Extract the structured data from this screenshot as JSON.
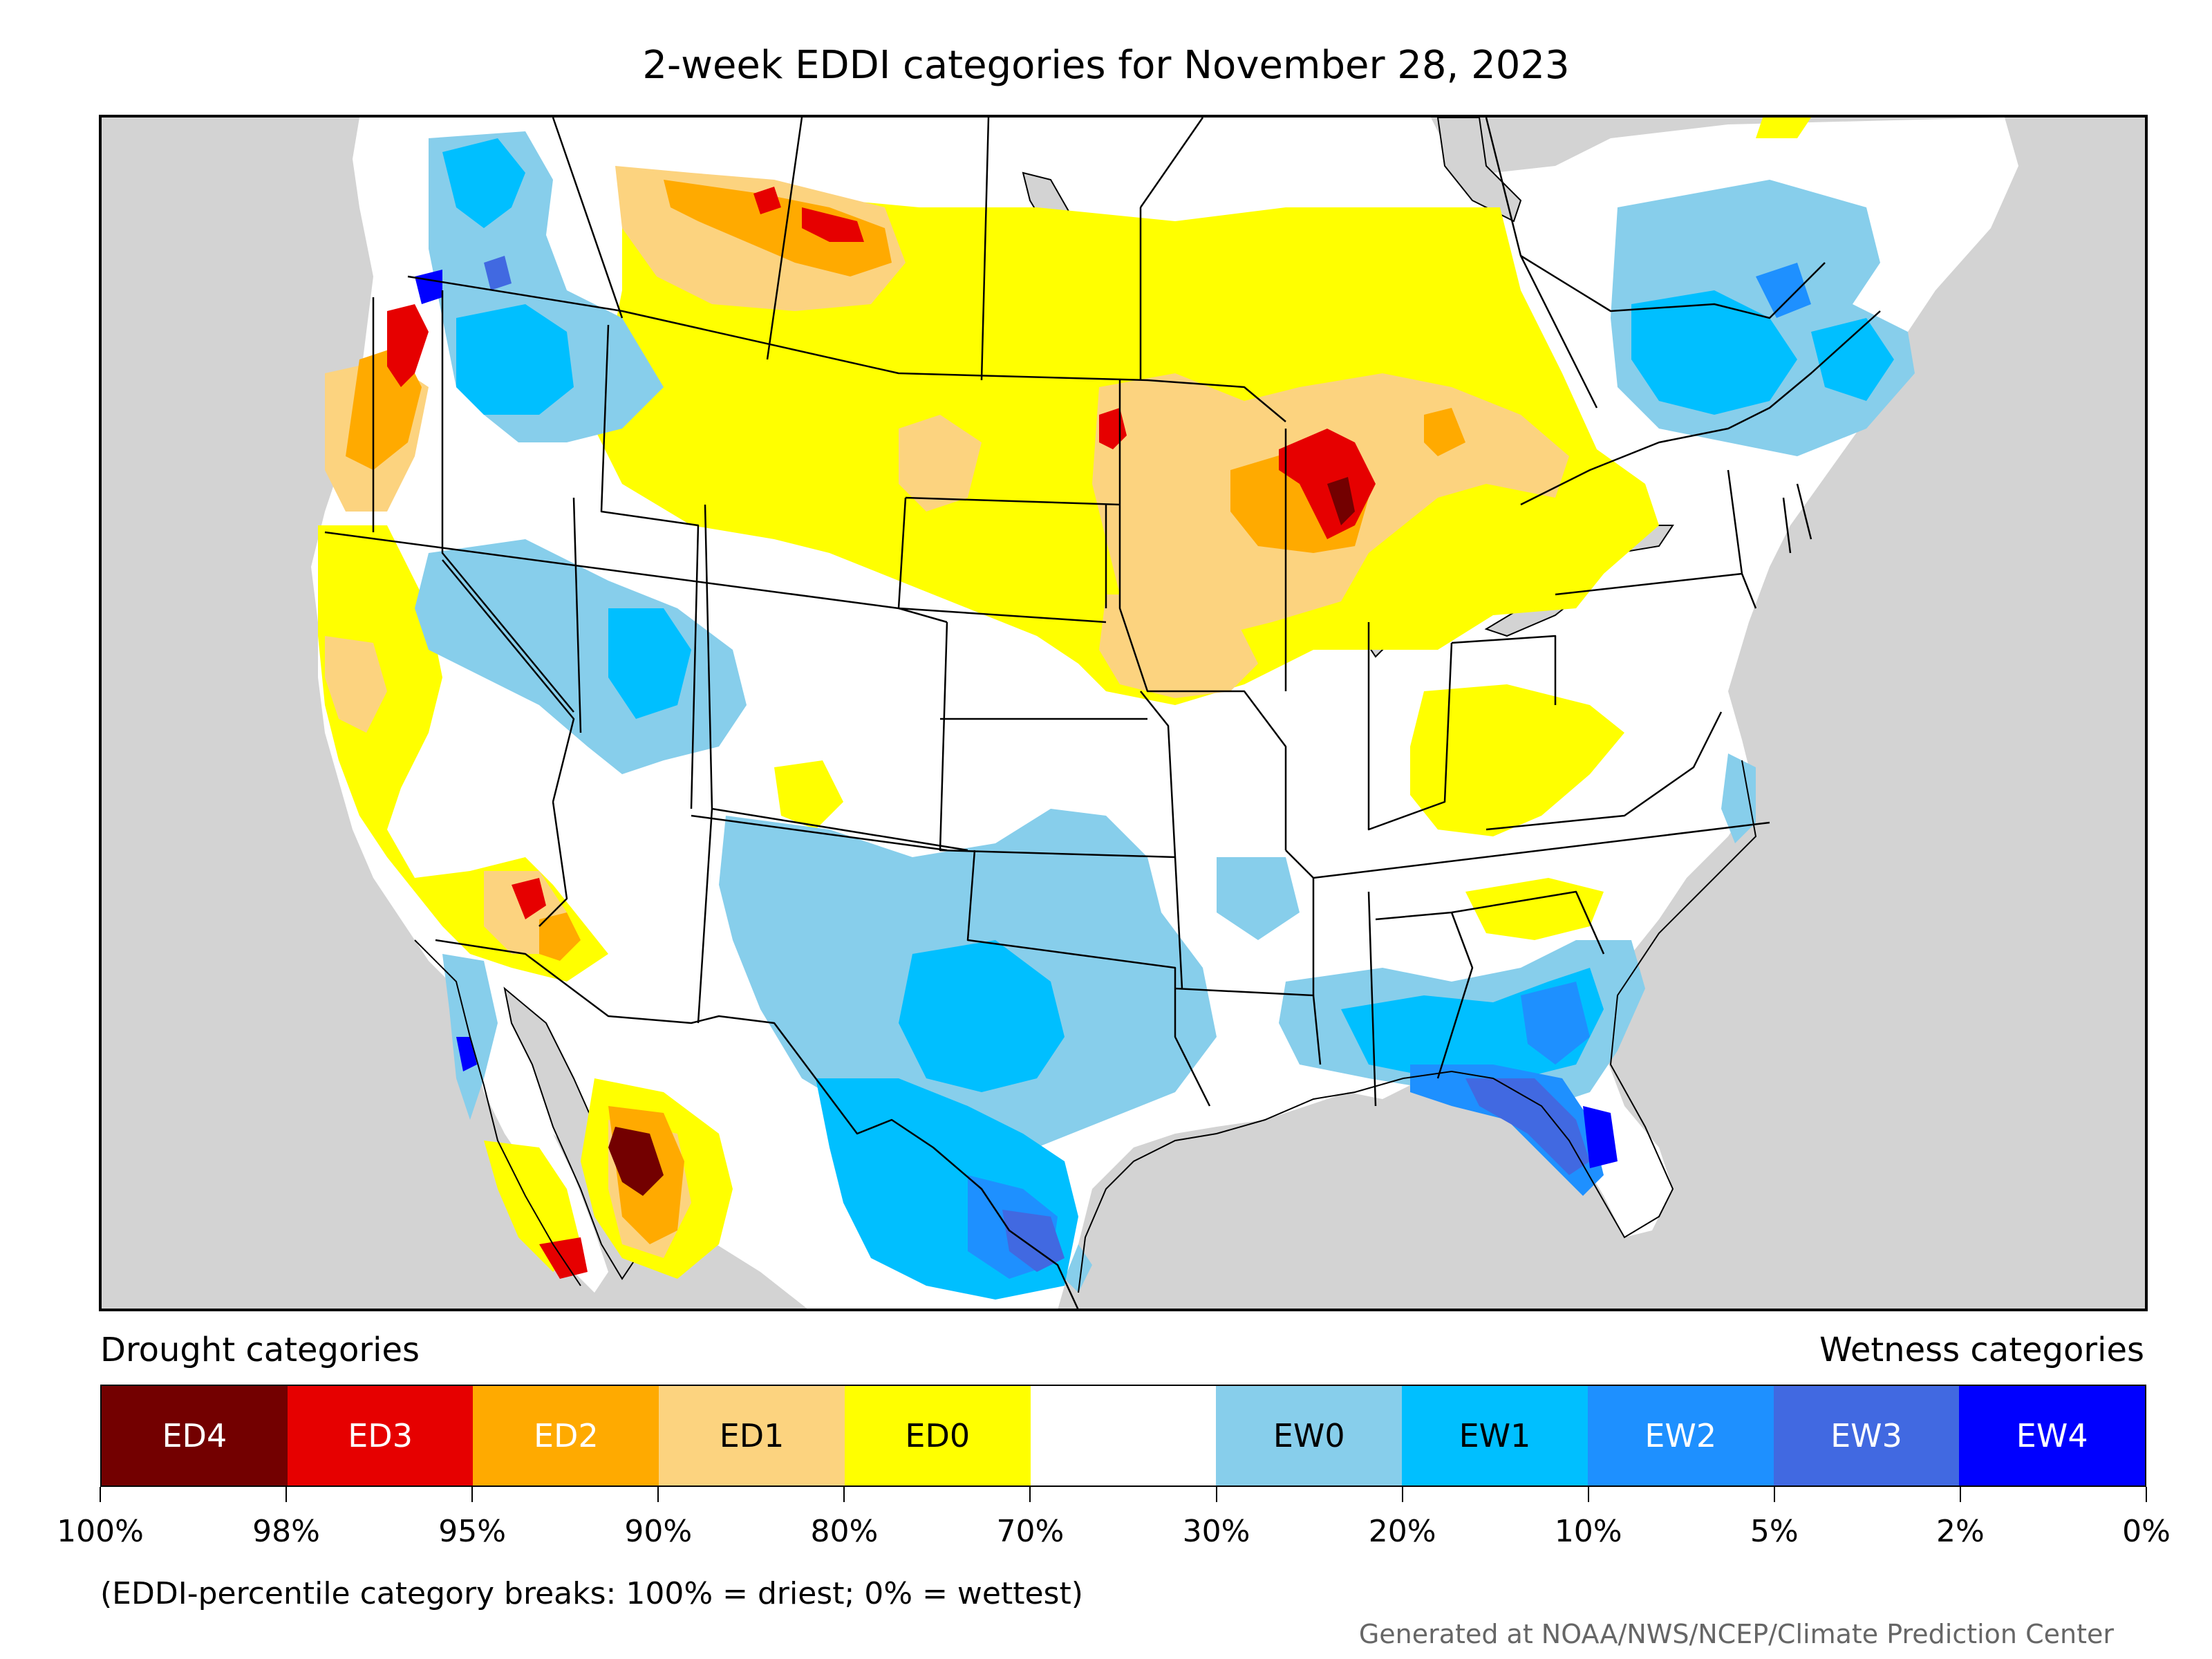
{
  "title": "2-week EDDI categories for November 28, 2023",
  "legend": {
    "drought_heading": "Drought categories",
    "wetness_heading": "Wetness categories",
    "categories": [
      {
        "label": "ED4",
        "color": "#730000",
        "text_color": "#ffffff"
      },
      {
        "label": "ED3",
        "color": "#e60000",
        "text_color": "#ffffff"
      },
      {
        "label": "ED2",
        "color": "#ffaa00",
        "text_color": "#ffffff"
      },
      {
        "label": "ED1",
        "color": "#fcd37f",
        "text_color": "#000000"
      },
      {
        "label": "ED0",
        "color": "#ffff00",
        "text_color": "#000000"
      },
      {
        "label": "",
        "color": "#ffffff",
        "text_color": "#000000"
      },
      {
        "label": "EW0",
        "color": "#87ceeb",
        "text_color": "#000000"
      },
      {
        "label": "EW1",
        "color": "#00bfff",
        "text_color": "#000000"
      },
      {
        "label": "EW2",
        "color": "#1e90ff",
        "text_color": "#ffffff"
      },
      {
        "label": "EW3",
        "color": "#4169e1",
        "text_color": "#ffffff"
      },
      {
        "label": "EW4",
        "color": "#0000ff",
        "text_color": "#ffffff"
      }
    ],
    "ticks": [
      "100%",
      "98%",
      "95%",
      "90%",
      "80%",
      "70%",
      "30%",
      "20%",
      "10%",
      "5%",
      "2%",
      "0%"
    ]
  },
  "note": "(EDDI-percentile category breaks: 100% = driest; 0% = wettest)",
  "credit": "Generated at NOAA/NWS/NCEP/Climate Prediction Center",
  "colors": {
    "land_outside": "#d3d3d3",
    "water": "#d3d3d3",
    "border": "#000000"
  }
}
